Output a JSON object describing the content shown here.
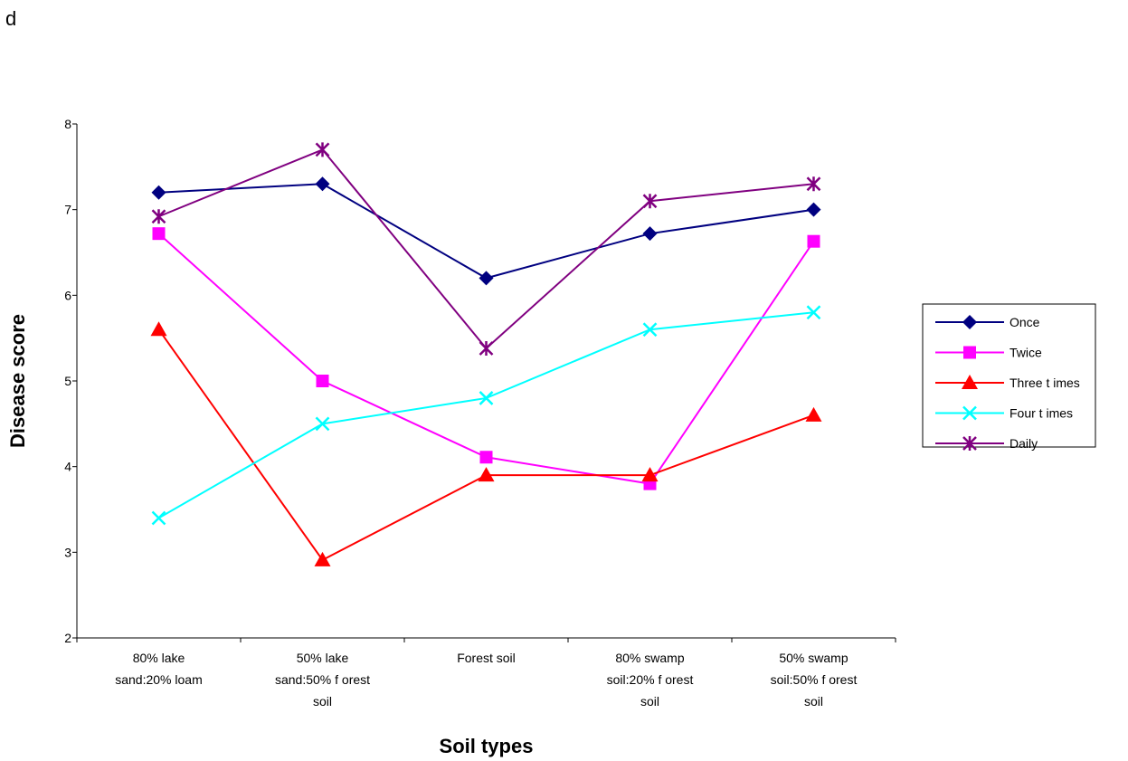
{
  "panel_label": "d",
  "chart_data": {
    "type": "line",
    "title": "",
    "xlabel": "Soil types",
    "ylabel": "Disease score",
    "ylim": [
      2,
      8
    ],
    "yticks": [
      2,
      3,
      4,
      5,
      6,
      7,
      8
    ],
    "grid": false,
    "legend_position": "right",
    "categories": [
      [
        "80% lake",
        "sand:20% loam"
      ],
      [
        "50% lake",
        "sand:50% f orest",
        "soil"
      ],
      [
        "Forest soil"
      ],
      [
        "80% swamp",
        "soil:20% f orest",
        "soil"
      ],
      [
        "50% swamp",
        "soil:50% f orest",
        "soil"
      ]
    ],
    "series": [
      {
        "name": "Once",
        "color": "#000080",
        "marker": "diamond",
        "values": [
          7.2,
          7.3,
          6.2,
          6.72,
          7.0
        ]
      },
      {
        "name": "Twice",
        "color": "#FF00FF",
        "marker": "square",
        "values": [
          6.72,
          5.0,
          4.11,
          3.8,
          6.63
        ]
      },
      {
        "name": "Three t imes",
        "color": "#FF0000",
        "marker": "triangle",
        "values": [
          5.6,
          2.91,
          3.9,
          3.9,
          4.6
        ]
      },
      {
        "name": "Four t imes",
        "color": "#00FFFF",
        "marker": "x",
        "values": [
          3.4,
          4.5,
          4.8,
          5.6,
          5.8
        ]
      },
      {
        "name": "Daily",
        "color": "#800080",
        "marker": "star",
        "values": [
          6.92,
          7.7,
          5.38,
          7.1,
          7.3
        ]
      }
    ]
  }
}
